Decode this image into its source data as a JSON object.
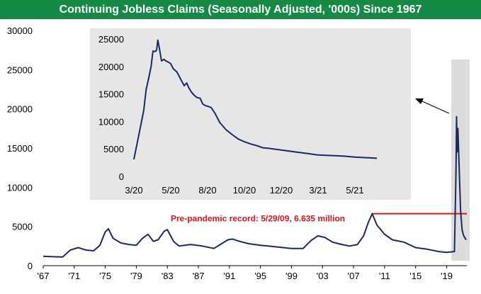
{
  "title": "Continuing Jobless Claims (Seasonally Adjusted, '000s) Since 1967",
  "colors": {
    "title_bg": "#148a44",
    "line": "#1a2a5e",
    "record": "#e8101a",
    "inset_bg": "#e6e6e6",
    "highlight_bg": "#dcdcdc"
  },
  "annotation": "Pre-pandemic record: 5/29/09, 6.635 million",
  "chart_data": [
    {
      "type": "line",
      "title": "Continuing Jobless Claims (Seasonally Adjusted, '000s) Since 1967",
      "xlim": [
        1967,
        2021.6
      ],
      "ylim": [
        0,
        30000
      ],
      "y_ticks": [
        "0",
        "5000",
        "10000",
        "15000",
        "20000",
        "25000",
        "30000"
      ],
      "y_tick_values": [
        0,
        5000,
        10000,
        15000,
        20000,
        25000,
        30000
      ],
      "x_ticks": [
        "'67",
        "'71",
        "'75",
        "'79",
        "'83",
        "'87",
        "'91",
        "'95",
        "'99",
        "'03",
        "'07",
        "'11",
        "'15",
        "'19"
      ],
      "x_tick_values": [
        1967,
        1971,
        1975,
        1979,
        1983,
        1987,
        1991,
        1995,
        1999,
        2003,
        2007,
        2011,
        2015,
        2019
      ],
      "grid": false,
      "reference_line": {
        "label": "Pre-pandemic record: 5/29/09, 6.635 million",
        "date": "5/29/09",
        "value": 6635
      },
      "series": [
        {
          "x": [
            1967,
            1968,
            1969.5,
            1970.5,
            1971.5,
            1972.5,
            1973.5,
            1974.3,
            1975.0,
            1975.4,
            1976.0,
            1977.0,
            1978.0,
            1979.0,
            1979.8,
            1980.5,
            1981.2,
            1981.8,
            1982.6,
            1983.0,
            1983.8,
            1984.5,
            1986.0,
            1987.5,
            1989.0,
            1990.0,
            1990.8,
            1991.4,
            1992.3,
            1993.5,
            1995.0,
            1996.0,
            1997.5,
            1999.0,
            2000.5,
            2001.5,
            2002.4,
            2003.3,
            2004.3,
            2005.5,
            2006.5,
            2007.5,
            2008.3,
            2008.9,
            2009.4,
            2010.0,
            2011.0,
            2012.0,
            2013.5,
            2015.0,
            2016.5,
            2018.0,
            2019.0,
            2020.0,
            2020.2,
            2020.28,
            2020.35,
            2020.45,
            2020.6,
            2020.8,
            2021.0,
            2021.2,
            2021.5
          ],
          "y": [
            1200,
            1150,
            1100,
            2000,
            2300,
            2000,
            1900,
            2600,
            4300,
            4700,
            3500,
            2900,
            2700,
            2600,
            3500,
            4000,
            3100,
            3300,
            4400,
            4600,
            3100,
            2500,
            2700,
            2500,
            2200,
            2800,
            3300,
            3400,
            3100,
            2800,
            2600,
            2500,
            2350,
            2200,
            2200,
            3200,
            3800,
            3600,
            3000,
            2700,
            2500,
            2700,
            3800,
            5500,
            6635,
            5200,
            4000,
            3300,
            3000,
            2300,
            2100,
            1800,
            1700,
            1800,
            12000,
            19000,
            14500,
            17500,
            13000,
            7000,
            4500,
            3800,
            3300
          ]
        }
      ],
      "highlight_range": [
        "3/20",
        "5/21"
      ]
    },
    {
      "type": "line",
      "title": "",
      "xlim": [
        0,
        21
      ],
      "ylim": [
        0,
        25000
      ],
      "y_ticks": [
        "0",
        "5000",
        "10000",
        "15000",
        "20000",
        "25000"
      ],
      "y_tick_values": [
        0,
        5000,
        10000,
        15000,
        20000,
        25000
      ],
      "x_ticks": [
        "3/20",
        "5/20",
        "8/20",
        "10/20",
        "12/20",
        "3/21",
        "5/21"
      ],
      "x_tick_values": [
        0,
        3,
        6,
        9,
        12,
        15,
        18
      ],
      "grid": false,
      "series": [
        {
          "x": [
            0,
            0.4,
            0.8,
            1.0,
            1.2,
            1.4,
            1.55,
            1.75,
            1.85,
            1.95,
            2.1,
            2.25,
            2.45,
            2.6,
            2.8,
            3.0,
            3.2,
            3.5,
            3.7,
            3.9,
            4.1,
            4.3,
            4.5,
            4.7,
            4.9,
            5.1,
            5.4,
            5.6,
            5.8,
            6.1,
            6.3,
            6.6,
            7.0,
            7.5,
            8.0,
            8.5,
            9.0,
            9.5,
            10.0,
            10.5,
            11.0,
            12.0,
            13.0,
            14.0,
            15.0,
            16.0,
            17.0,
            18.0,
            19.0,
            19.8
          ],
          "y": [
            3100,
            7500,
            12000,
            15800,
            17800,
            20000,
            22800,
            22700,
            23000,
            24800,
            23000,
            21000,
            21300,
            21000,
            20800,
            20500,
            19600,
            19000,
            18200,
            17300,
            16500,
            17000,
            16000,
            15300,
            14800,
            14400,
            14200,
            13200,
            12900,
            12700,
            12500,
            11500,
            9800,
            8500,
            7600,
            6800,
            6300,
            5900,
            5600,
            5200,
            5100,
            4800,
            4500,
            4200,
            3900,
            3800,
            3700,
            3500,
            3400,
            3300
          ]
        }
      ]
    }
  ]
}
